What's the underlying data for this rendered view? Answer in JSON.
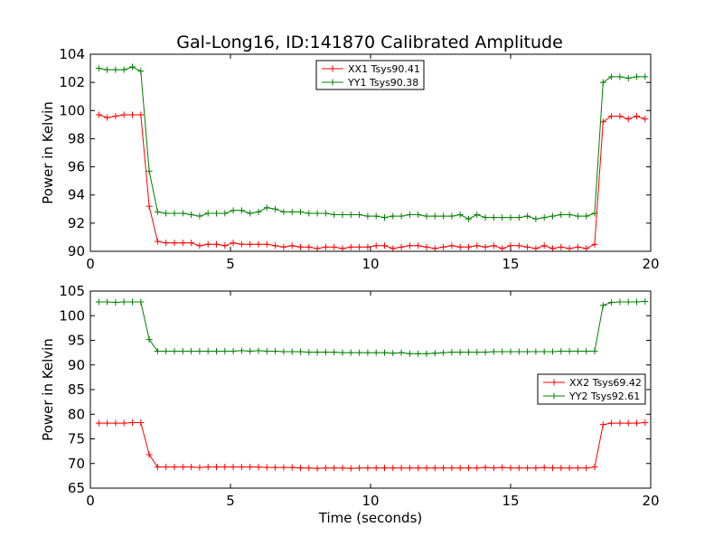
{
  "title": "Gal-Long16, ID:141870 Calibrated Amplitude",
  "chart_data": [
    {
      "type": "line",
      "xlabel": "",
      "ylabel": "Power in Kelvin",
      "xlim": [
        0,
        20
      ],
      "ylim": [
        90,
        104
      ],
      "xticks": [
        "0",
        "5",
        "10",
        "15",
        "20"
      ],
      "yticks": [
        "90",
        "92",
        "94",
        "96",
        "98",
        "100",
        "102",
        "104"
      ],
      "legend_position": "top-center",
      "x": [
        0.3,
        0.6,
        0.9,
        1.2,
        1.5,
        1.8,
        2.1,
        2.4,
        2.7,
        3.0,
        3.3,
        3.6,
        3.9,
        4.2,
        4.5,
        4.8,
        5.1,
        5.4,
        5.7,
        6.0,
        6.3,
        6.6,
        6.9,
        7.2,
        7.5,
        7.8,
        8.1,
        8.4,
        8.7,
        9.0,
        9.3,
        9.6,
        9.9,
        10.2,
        10.5,
        10.8,
        11.1,
        11.4,
        11.7,
        12.0,
        12.3,
        12.6,
        12.9,
        13.2,
        13.5,
        13.8,
        14.1,
        14.4,
        14.7,
        15.0,
        15.3,
        15.6,
        15.9,
        16.2,
        16.5,
        16.8,
        17.1,
        17.4,
        17.7,
        18.0,
        18.3,
        18.6,
        18.9,
        19.2,
        19.5,
        19.8
      ],
      "series": [
        {
          "name": "XX1 Tsys90.41",
          "color": "#ff0000",
          "values": [
            99.7,
            99.5,
            99.6,
            99.7,
            99.7,
            99.7,
            93.2,
            90.7,
            90.6,
            90.6,
            90.6,
            90.6,
            90.4,
            90.5,
            90.5,
            90.4,
            90.6,
            90.5,
            90.5,
            90.5,
            90.5,
            90.4,
            90.3,
            90.4,
            90.3,
            90.3,
            90.2,
            90.3,
            90.3,
            90.2,
            90.3,
            90.3,
            90.3,
            90.4,
            90.4,
            90.2,
            90.3,
            90.4,
            90.4,
            90.3,
            90.2,
            90.3,
            90.4,
            90.3,
            90.3,
            90.4,
            90.3,
            90.4,
            90.2,
            90.4,
            90.4,
            90.3,
            90.2,
            90.4,
            90.2,
            90.3,
            90.2,
            90.3,
            90.2,
            90.5,
            99.2,
            99.6,
            99.6,
            99.4,
            99.6,
            99.4
          ]
        },
        {
          "name": "YY1 Tsys90.38",
          "color": "#008000",
          "values": [
            103.0,
            102.9,
            102.9,
            102.9,
            103.1,
            102.8,
            95.7,
            92.8,
            92.7,
            92.7,
            92.7,
            92.6,
            92.5,
            92.7,
            92.7,
            92.7,
            92.9,
            92.9,
            92.7,
            92.8,
            93.1,
            93.0,
            92.8,
            92.8,
            92.8,
            92.7,
            92.7,
            92.7,
            92.6,
            92.6,
            92.6,
            92.6,
            92.5,
            92.5,
            92.4,
            92.5,
            92.5,
            92.6,
            92.6,
            92.5,
            92.5,
            92.5,
            92.5,
            92.6,
            92.3,
            92.6,
            92.4,
            92.4,
            92.4,
            92.4,
            92.4,
            92.5,
            92.3,
            92.4,
            92.5,
            92.6,
            92.6,
            92.5,
            92.5,
            92.7,
            102.0,
            102.4,
            102.4,
            102.3,
            102.4,
            102.4
          ]
        }
      ]
    },
    {
      "type": "line",
      "xlabel": "Time (seconds)",
      "ylabel": "Power in Kelvin",
      "xlim": [
        0,
        20
      ],
      "ylim": [
        65,
        105
      ],
      "xticks": [
        "0",
        "5",
        "10",
        "15",
        "20"
      ],
      "yticks": [
        "65",
        "70",
        "75",
        "80",
        "85",
        "90",
        "95",
        "100",
        "105"
      ],
      "legend_position": "center-right",
      "x": [
        0.3,
        0.6,
        0.9,
        1.2,
        1.5,
        1.8,
        2.1,
        2.4,
        2.7,
        3.0,
        3.3,
        3.6,
        3.9,
        4.2,
        4.5,
        4.8,
        5.1,
        5.4,
        5.7,
        6.0,
        6.3,
        6.6,
        6.9,
        7.2,
        7.5,
        7.8,
        8.1,
        8.4,
        8.7,
        9.0,
        9.3,
        9.6,
        9.9,
        10.2,
        10.5,
        10.8,
        11.1,
        11.4,
        11.7,
        12.0,
        12.3,
        12.6,
        12.9,
        13.2,
        13.5,
        13.8,
        14.1,
        14.4,
        14.7,
        15.0,
        15.3,
        15.6,
        15.9,
        16.2,
        16.5,
        16.8,
        17.1,
        17.4,
        17.7,
        18.0,
        18.3,
        18.6,
        18.9,
        19.2,
        19.5,
        19.8
      ],
      "series": [
        {
          "name": "XX2 Tsys69.42",
          "color": "#ff0000",
          "values": [
            78.2,
            78.2,
            78.2,
            78.2,
            78.3,
            78.3,
            71.8,
            69.3,
            69.3,
            69.3,
            69.3,
            69.3,
            69.2,
            69.3,
            69.3,
            69.3,
            69.3,
            69.3,
            69.3,
            69.3,
            69.2,
            69.2,
            69.2,
            69.2,
            69.1,
            69.1,
            69.0,
            69.1,
            69.1,
            69.1,
            69.0,
            69.1,
            69.1,
            69.1,
            69.1,
            69.1,
            69.1,
            69.1,
            69.1,
            69.1,
            69.1,
            69.1,
            69.1,
            69.1,
            69.1,
            69.1,
            69.2,
            69.1,
            69.2,
            69.1,
            69.1,
            69.1,
            69.1,
            69.2,
            69.1,
            69.1,
            69.1,
            69.1,
            69.1,
            69.3,
            77.9,
            78.2,
            78.2,
            78.2,
            78.2,
            78.3
          ]
        },
        {
          "name": "YY2 Tsys92.61",
          "color": "#008000",
          "values": [
            102.8,
            102.8,
            102.7,
            102.8,
            102.8,
            102.8,
            95.2,
            92.8,
            92.8,
            92.8,
            92.8,
            92.8,
            92.8,
            92.8,
            92.8,
            92.8,
            92.8,
            92.9,
            92.8,
            92.9,
            92.8,
            92.8,
            92.7,
            92.7,
            92.7,
            92.6,
            92.6,
            92.6,
            92.6,
            92.5,
            92.5,
            92.5,
            92.5,
            92.5,
            92.5,
            92.4,
            92.5,
            92.3,
            92.3,
            92.3,
            92.4,
            92.5,
            92.6,
            92.6,
            92.6,
            92.6,
            92.6,
            92.7,
            92.7,
            92.7,
            92.7,
            92.7,
            92.7,
            92.7,
            92.7,
            92.8,
            92.8,
            92.8,
            92.8,
            92.8,
            102.1,
            102.7,
            102.8,
            102.8,
            102.8,
            102.9
          ]
        }
      ]
    }
  ]
}
